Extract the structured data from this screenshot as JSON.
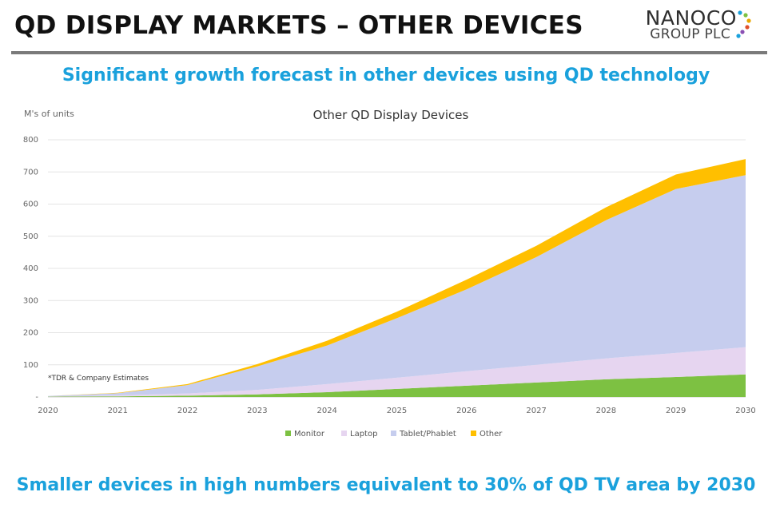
{
  "header": {
    "title": "QD DISPLAY MARKETS – OTHER DEVICES",
    "logo_main": "NANOCO",
    "logo_sub": "GROUP PLC",
    "subtitle": "Significant growth forecast in other devices using QD technology",
    "footer": "Smaller devices in high numbers equivalent to 30% of QD TV area by 2030"
  },
  "colors": {
    "accent": "#1aa1dc",
    "monitor": "#7dc142",
    "laptop": "#e6d5f0",
    "tablet": "#c6cdee",
    "other": "#ffbf00"
  },
  "chart_data": {
    "type": "area",
    "stacked": true,
    "title": "Other QD Display Devices",
    "ylabel": "M's of units",
    "xlabel": "",
    "x": [
      "2020",
      "2021",
      "2022",
      "2023",
      "2024",
      "2025",
      "2026",
      "2027",
      "2028",
      "2029",
      "2030"
    ],
    "ylim": [
      0,
      800
    ],
    "yticks": [
      "-",
      "100",
      "200",
      "300",
      "400",
      "500",
      "600",
      "700",
      "800"
    ],
    "annotation": "*TDR & Company Estimates",
    "grid": true,
    "legend_position": "bottom",
    "series": [
      {
        "name": "Monitor",
        "color": "#7dc142",
        "values": [
          1,
          2,
          4,
          8,
          15,
          25,
          35,
          45,
          55,
          62,
          70
        ]
      },
      {
        "name": "Laptop",
        "color": "#e6d5f0",
        "values": [
          1,
          3,
          7,
          14,
          25,
          35,
          45,
          55,
          65,
          75,
          85
        ]
      },
      {
        "name": "Tablet/Phablet",
        "color": "#c6cdee",
        "values": [
          1,
          7,
          26,
          73,
          120,
          185,
          255,
          335,
          430,
          510,
          535
        ]
      },
      {
        "name": "Other",
        "color": "#ffbf00",
        "values": [
          0,
          1,
          3,
          7,
          15,
          20,
          30,
          35,
          40,
          45,
          50
        ]
      }
    ]
  }
}
